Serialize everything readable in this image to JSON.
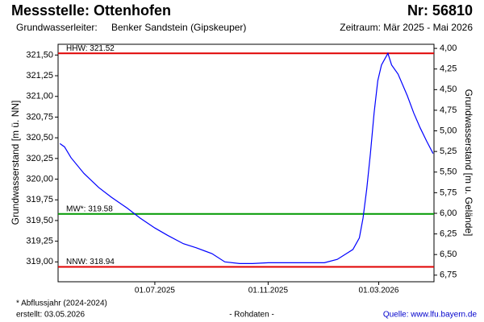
{
  "chart_data": {
    "type": "line",
    "title": "Messstelle: Ottenhofen",
    "station_number": "Nr: 56810",
    "aquifer_label": "Grundwasserleiter:",
    "aquifer": "Benker Sandstein (Gipskeuper)",
    "period": "Zeitraum: Mär 2025 - Mai 2026",
    "ylabel": "Grundwasserstand [m ü. NN]",
    "y2label": "Grundwasserstand [m u. Gelände]",
    "footnote": "* Abflussjahr (2024-2024)",
    "created": "erstellt:  03.05.2026",
    "data_note": "- Rohdaten -",
    "source": "Quelle: www.lfu.bayern.de",
    "xlim": [
      "2025-03-18",
      "2026-04-30"
    ],
    "xticks": [
      {
        "value": "2025-07-01",
        "label": "01.07.2025"
      },
      {
        "value": "2025-11-01",
        "label": "01.11.2025"
      },
      {
        "value": "2026-03-01",
        "label": "01.03.2026"
      }
    ],
    "ylim": [
      318.76,
      321.63
    ],
    "yticks": [
      {
        "value": 319.0,
        "label": "319,00"
      },
      {
        "value": 319.25,
        "label": "319,25"
      },
      {
        "value": 319.5,
        "label": "319,50"
      },
      {
        "value": 319.75,
        "label": "319,75"
      },
      {
        "value": 320.0,
        "label": "320,00"
      },
      {
        "value": 320.25,
        "label": "320,25"
      },
      {
        "value": 320.5,
        "label": "320,50"
      },
      {
        "value": 320.75,
        "label": "320,75"
      },
      {
        "value": 321.0,
        "label": "321,00"
      },
      {
        "value": 321.25,
        "label": "321,25"
      },
      {
        "value": 321.5,
        "label": "321,50"
      }
    ],
    "y2lim": [
      6.83,
      3.95
    ],
    "y2ticks": [
      {
        "value": 4.0,
        "label": "4,00"
      },
      {
        "value": 4.25,
        "label": "4,25"
      },
      {
        "value": 4.5,
        "label": "4,50"
      },
      {
        "value": 4.75,
        "label": "4,75"
      },
      {
        "value": 5.0,
        "label": "5,00"
      },
      {
        "value": 5.25,
        "label": "5,25"
      },
      {
        "value": 5.5,
        "label": "5,50"
      },
      {
        "value": 5.75,
        "label": "5,75"
      },
      {
        "value": 6.0,
        "label": "6,00"
      },
      {
        "value": 6.25,
        "label": "6,25"
      },
      {
        "value": 6.5,
        "label": "6,50"
      },
      {
        "value": 6.75,
        "label": "6,75"
      }
    ],
    "grid": false,
    "reference_lines": [
      {
        "label": "HHW: 321.52",
        "value": 321.52,
        "color": "#e00000"
      },
      {
        "label": "MW*: 319.58",
        "value": 319.58,
        "color": "#009900"
      },
      {
        "label": "NNW: 318.94",
        "value": 318.94,
        "color": "#e00000"
      }
    ],
    "series": [
      {
        "color": "#0000ff",
        "x": [
          "2025-03-20",
          "2025-03-25",
          "2025-04-01",
          "2025-04-15",
          "2025-05-01",
          "2025-05-15",
          "2025-06-01",
          "2025-06-15",
          "2025-07-01",
          "2025-07-15",
          "2025-08-01",
          "2025-08-15",
          "2025-09-01",
          "2025-09-15",
          "2025-10-01",
          "2025-10-15",
          "2025-11-01",
          "2025-11-15",
          "2025-12-01",
          "2025-12-15",
          "2026-01-01",
          "2026-01-15",
          "2026-01-25",
          "2026-02-01",
          "2026-02-08",
          "2026-02-12",
          "2026-02-16",
          "2026-02-20",
          "2026-02-24",
          "2026-02-28",
          "2026-03-04",
          "2026-03-08",
          "2026-03-11",
          "2026-03-15",
          "2026-03-22",
          "2026-04-01",
          "2026-04-08",
          "2026-04-15",
          "2026-04-22",
          "2026-04-29"
        ],
        "values": [
          320.43,
          320.39,
          320.26,
          320.07,
          319.9,
          319.78,
          319.65,
          319.53,
          319.41,
          319.32,
          319.22,
          319.17,
          319.1,
          319.0,
          318.98,
          318.98,
          318.99,
          318.99,
          318.99,
          318.99,
          318.99,
          319.03,
          319.1,
          319.15,
          319.29,
          319.53,
          319.88,
          320.31,
          320.8,
          321.19,
          321.38,
          321.46,
          321.52,
          321.38,
          321.27,
          321.01,
          320.8,
          320.62,
          320.46,
          320.31
        ]
      }
    ]
  }
}
